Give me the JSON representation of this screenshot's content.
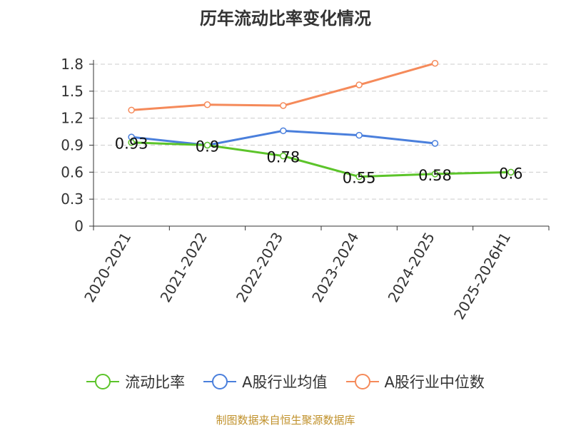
{
  "source_note": "制图数据来自恒生聚源数据库",
  "chart_data": {
    "type": "line",
    "title": "历年流动比率变化情况",
    "xlabel": "",
    "ylabel": "",
    "categories": [
      "2020-2021",
      "2021-2022",
      "2022-2023",
      "2023-2024",
      "2024-2025",
      "2025-2026H1"
    ],
    "y_ticks": [
      "0",
      "0.3",
      "0.6",
      "0.9",
      "1.2",
      "1.5",
      "1.8"
    ],
    "ylim": [
      0,
      1.8
    ],
    "grid": true,
    "legend_position": "bottom",
    "series": [
      {
        "name": "流动比率",
        "color": "#5cc42a",
        "values": [
          0.93,
          0.9,
          0.78,
          0.55,
          0.58,
          0.6
        ],
        "labels": [
          "0.93",
          "0.9",
          "0.78",
          "0.55",
          "0.58",
          "0.6"
        ]
      },
      {
        "name": "A股行业均值",
        "color": "#4a7fdc",
        "values": [
          0.99,
          0.9,
          1.06,
          1.01,
          0.92,
          null
        ]
      },
      {
        "name": "A股行业中位数",
        "color": "#f58a5a",
        "values": [
          1.29,
          1.35,
          1.34,
          1.57,
          1.81,
          null
        ]
      }
    ]
  }
}
